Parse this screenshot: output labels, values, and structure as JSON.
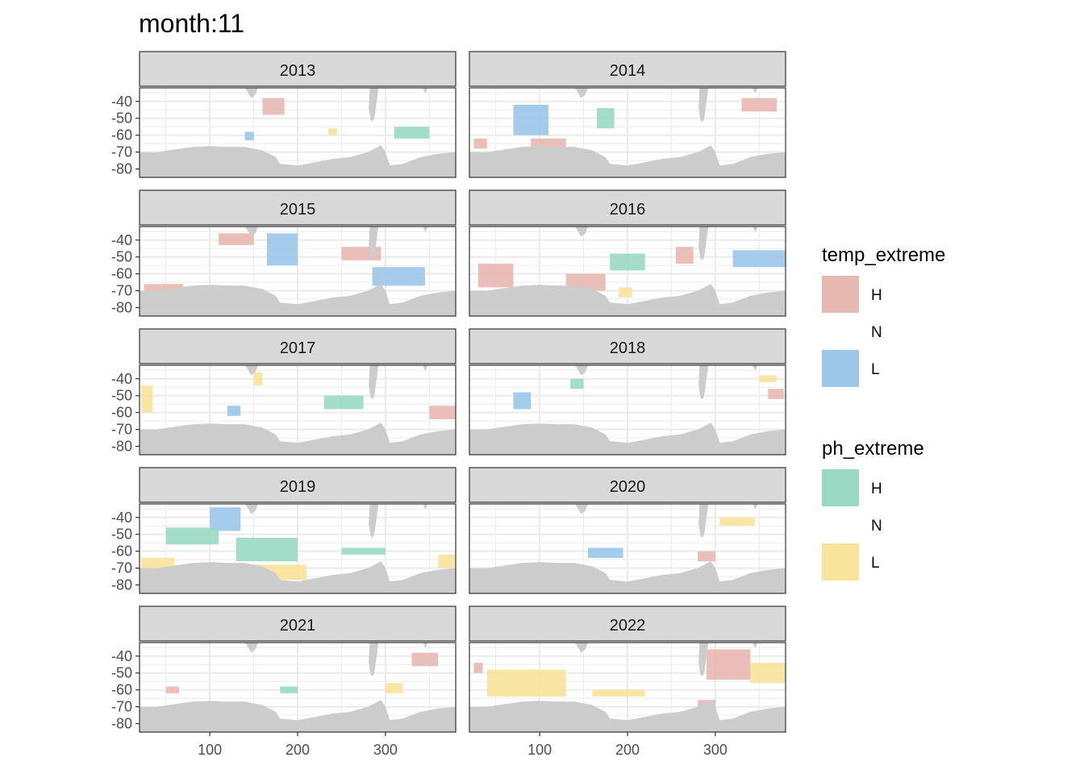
{
  "title": "month:11",
  "chart_data": {
    "type": "heatmap",
    "title": "month:11",
    "facet_variable": "year",
    "xlabel": "",
    "ylabel": "",
    "x_ticks": [
      100,
      200,
      300
    ],
    "y_ticks": [
      -40,
      -50,
      -60,
      -70,
      -80
    ],
    "xlim": [
      20,
      380
    ],
    "ylim": [
      -85,
      -32
    ],
    "grid": true,
    "land_color": "#cccccc",
    "legend_position": "right",
    "legends": [
      {
        "title": "temp_extreme",
        "entries": [
          {
            "label": "H",
            "color": "#e8b8b3"
          },
          {
            "label": "N",
            "color": "#ffffff"
          },
          {
            "label": "L",
            "color": "#9bc7e8"
          }
        ]
      },
      {
        "title": "ph_extreme",
        "entries": [
          {
            "label": "H",
            "color": "#9ad9c4"
          },
          {
            "label": "N",
            "color": "#ffffff"
          },
          {
            "label": "L",
            "color": "#f8e39a"
          }
        ]
      }
    ],
    "panels": [
      {
        "year": "2013",
        "regions": [
          {
            "var": "temp",
            "level": "H",
            "lon": [
              160,
              185
            ],
            "lat": [
              -48,
              -38
            ]
          },
          {
            "var": "ph",
            "level": "H",
            "lon": [
              310,
              350
            ],
            "lat": [
              -62,
              -55
            ]
          },
          {
            "var": "ph",
            "level": "L",
            "lon": [
              235,
              245
            ],
            "lat": [
              -60,
              -56
            ]
          },
          {
            "var": "temp",
            "level": "L",
            "lon": [
              140,
              150
            ],
            "lat": [
              -63,
              -58
            ]
          }
        ]
      },
      {
        "year": "2014",
        "regions": [
          {
            "var": "temp",
            "level": "L",
            "lon": [
              70,
              110
            ],
            "lat": [
              -60,
              -42
            ]
          },
          {
            "var": "ph",
            "level": "H",
            "lon": [
              165,
              185
            ],
            "lat": [
              -56,
              -44
            ]
          },
          {
            "var": "temp",
            "level": "H",
            "lon": [
              330,
              370
            ],
            "lat": [
              -46,
              -38
            ]
          },
          {
            "var": "temp",
            "level": "H",
            "lon": [
              25,
              40
            ],
            "lat": [
              -68,
              -62
            ]
          },
          {
            "var": "temp",
            "level": "H",
            "lon": [
              90,
              130
            ],
            "lat": [
              -68,
              -62
            ]
          }
        ]
      },
      {
        "year": "2015",
        "regions": [
          {
            "var": "temp",
            "level": "H",
            "lon": [
              110,
              150
            ],
            "lat": [
              -43,
              -36
            ]
          },
          {
            "var": "temp",
            "level": "L",
            "lon": [
              165,
              200
            ],
            "lat": [
              -55,
              -36
            ]
          },
          {
            "var": "temp",
            "level": "H",
            "lon": [
              250,
              295
            ],
            "lat": [
              -52,
              -44
            ]
          },
          {
            "var": "temp",
            "level": "L",
            "lon": [
              285,
              345
            ],
            "lat": [
              -67,
              -56
            ]
          },
          {
            "var": "temp",
            "level": "H",
            "lon": [
              25,
              70
            ],
            "lat": [
              -72,
              -66
            ]
          }
        ]
      },
      {
        "year": "2016",
        "regions": [
          {
            "var": "temp",
            "level": "H",
            "lon": [
              30,
              70
            ],
            "lat": [
              -68,
              -54
            ]
          },
          {
            "var": "temp",
            "level": "H",
            "lon": [
              130,
              175
            ],
            "lat": [
              -70,
              -60
            ]
          },
          {
            "var": "ph",
            "level": "H",
            "lon": [
              180,
              220
            ],
            "lat": [
              -58,
              -48
            ]
          },
          {
            "var": "temp",
            "level": "H",
            "lon": [
              255,
              275
            ],
            "lat": [
              -54,
              -44
            ]
          },
          {
            "var": "temp",
            "level": "L",
            "lon": [
              320,
              380
            ],
            "lat": [
              -56,
              -46
            ]
          },
          {
            "var": "ph",
            "level": "L",
            "lon": [
              190,
              205
            ],
            "lat": [
              -74,
              -68
            ]
          }
        ]
      },
      {
        "year": "2017",
        "regions": [
          {
            "var": "ph",
            "level": "L",
            "lon": [
              22,
              35
            ],
            "lat": [
              -60,
              -44
            ]
          },
          {
            "var": "temp",
            "level": "L",
            "lon": [
              120,
              135
            ],
            "lat": [
              -62,
              -56
            ]
          },
          {
            "var": "ph",
            "level": "H",
            "lon": [
              230,
              275
            ],
            "lat": [
              -58,
              -50
            ]
          },
          {
            "var": "temp",
            "level": "H",
            "lon": [
              350,
              380
            ],
            "lat": [
              -64,
              -56
            ]
          },
          {
            "var": "ph",
            "level": "L",
            "lon": [
              150,
              160
            ],
            "lat": [
              -44,
              -36
            ]
          }
        ]
      },
      {
        "year": "2018",
        "regions": [
          {
            "var": "temp",
            "level": "L",
            "lon": [
              70,
              90
            ],
            "lat": [
              -58,
              -48
            ]
          },
          {
            "var": "ph",
            "level": "H",
            "lon": [
              135,
              150
            ],
            "lat": [
              -46,
              -40
            ]
          },
          {
            "var": "ph",
            "level": "L",
            "lon": [
              350,
              370
            ],
            "lat": [
              -42,
              -38
            ]
          },
          {
            "var": "temp",
            "level": "H",
            "lon": [
              360,
              378
            ],
            "lat": [
              -52,
              -46
            ]
          }
        ]
      },
      {
        "year": "2019",
        "regions": [
          {
            "var": "temp",
            "level": "L",
            "lon": [
              100,
              135
            ],
            "lat": [
              -48,
              -34
            ]
          },
          {
            "var": "ph",
            "level": "H",
            "lon": [
              50,
              110
            ],
            "lat": [
              -56,
              -46
            ]
          },
          {
            "var": "ph",
            "level": "H",
            "lon": [
              130,
              200
            ],
            "lat": [
              -66,
              -52
            ]
          },
          {
            "var": "ph",
            "level": "L",
            "lon": [
              150,
              210
            ],
            "lat": [
              -77,
              -68
            ]
          },
          {
            "var": "ph",
            "level": "L",
            "lon": [
              22,
              60
            ],
            "lat": [
              -70,
              -64
            ]
          },
          {
            "var": "ph",
            "level": "L",
            "lon": [
              360,
              380
            ],
            "lat": [
              -70,
              -62
            ]
          },
          {
            "var": "ph",
            "level": "H",
            "lon": [
              250,
              300
            ],
            "lat": [
              -62,
              -58
            ]
          }
        ]
      },
      {
        "year": "2020",
        "regions": [
          {
            "var": "temp",
            "level": "L",
            "lon": [
              155,
              195
            ],
            "lat": [
              -64,
              -58
            ]
          },
          {
            "var": "ph",
            "level": "L",
            "lon": [
              305,
              345
            ],
            "lat": [
              -45,
              -40
            ]
          },
          {
            "var": "temp",
            "level": "H",
            "lon": [
              280,
              300
            ],
            "lat": [
              -66,
              -60
            ]
          }
        ]
      },
      {
        "year": "2021",
        "regions": [
          {
            "var": "temp",
            "level": "H",
            "lon": [
              330,
              360
            ],
            "lat": [
              -46,
              -38
            ]
          },
          {
            "var": "ph",
            "level": "L",
            "lon": [
              300,
              320
            ],
            "lat": [
              -62,
              -56
            ]
          },
          {
            "var": "temp",
            "level": "H",
            "lon": [
              50,
              65
            ],
            "lat": [
              -62,
              -58
            ]
          },
          {
            "var": "ph",
            "level": "H",
            "lon": [
              180,
              200
            ],
            "lat": [
              -62,
              -58
            ]
          }
        ]
      },
      {
        "year": "2022",
        "regions": [
          {
            "var": "ph",
            "level": "L",
            "lon": [
              40,
              130
            ],
            "lat": [
              -64,
              -48
            ]
          },
          {
            "var": "ph",
            "level": "L",
            "lon": [
              160,
              220
            ],
            "lat": [
              -64,
              -60
            ]
          },
          {
            "var": "temp",
            "level": "H",
            "lon": [
              290,
              340
            ],
            "lat": [
              -54,
              -36
            ]
          },
          {
            "var": "ph",
            "level": "L",
            "lon": [
              340,
              380
            ],
            "lat": [
              -56,
              -44
            ]
          },
          {
            "var": "temp",
            "level": "H",
            "lon": [
              280,
              300
            ],
            "lat": [
              -72,
              -66
            ]
          },
          {
            "var": "temp",
            "level": "H",
            "lon": [
              25,
              35
            ],
            "lat": [
              -50,
              -44
            ]
          }
        ]
      }
    ]
  }
}
